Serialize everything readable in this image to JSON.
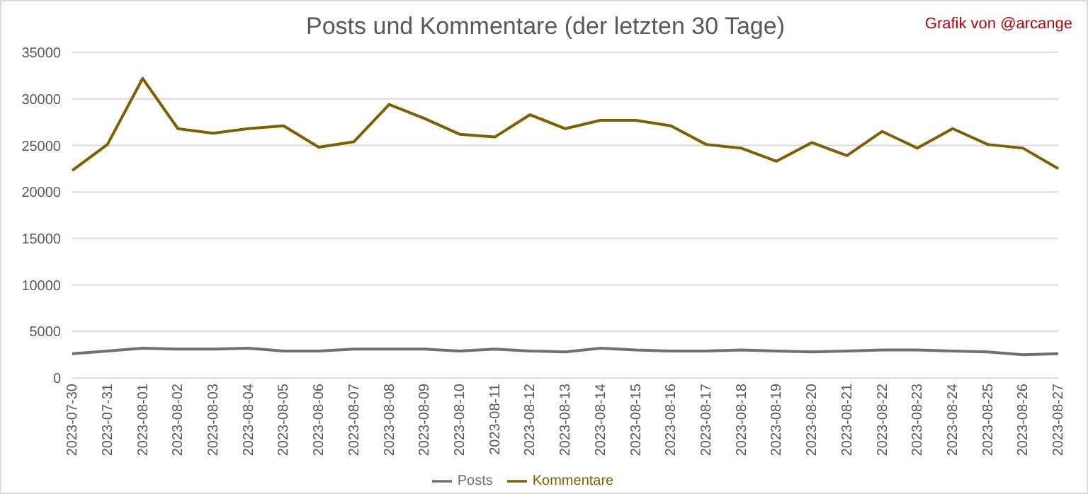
{
  "chart_data": {
    "type": "line",
    "title": "Posts und Kommentare (der letzten 30 Tage)",
    "annotations": [
      "Grafik von @arcange"
    ],
    "categories": [
      "2023-07-30",
      "2023-07-31",
      "2023-08-01",
      "2023-08-02",
      "2023-08-03",
      "2023-08-04",
      "2023-08-05",
      "2023-08-06",
      "2023-08-07",
      "2023-08-08",
      "2023-08-09",
      "2023-08-10",
      "2023-08-11",
      "2023-08-12",
      "2023-08-13",
      "2023-08-14",
      "2023-08-15",
      "2023-08-16",
      "2023-08-17",
      "2023-08-18",
      "2023-08-19",
      "2023-08-20",
      "2023-08-21",
      "2023-08-22",
      "2023-08-23",
      "2023-08-24",
      "2023-08-25",
      "2023-08-26",
      "2023-08-27"
    ],
    "series": [
      {
        "name": "Posts",
        "color": "#707070",
        "values": [
          2600,
          2900,
          3200,
          3100,
          3100,
          3200,
          2900,
          2900,
          3100,
          3100,
          3100,
          2900,
          3100,
          2900,
          2800,
          3200,
          3000,
          2900,
          2900,
          3000,
          2900,
          2800,
          2900,
          3000,
          3000,
          2900,
          2800,
          2500,
          2600
        ]
      },
      {
        "name": "Kommentare",
        "color": "#7f6000",
        "values": [
          22300,
          25100,
          32200,
          26800,
          26300,
          26800,
          27100,
          24800,
          25400,
          29400,
          27900,
          26200,
          25900,
          28300,
          26800,
          27700,
          27700,
          27100,
          25100,
          24700,
          23300,
          25300,
          23900,
          26500,
          24700,
          26800,
          25100,
          24700,
          22500
        ]
      }
    ],
    "ylim": [
      0,
      35000
    ],
    "yticks": [
      0,
      5000,
      10000,
      15000,
      20000,
      25000,
      30000,
      35000
    ],
    "grid": "y",
    "legend": "bottom",
    "marker": "none",
    "line_style": "solid"
  }
}
